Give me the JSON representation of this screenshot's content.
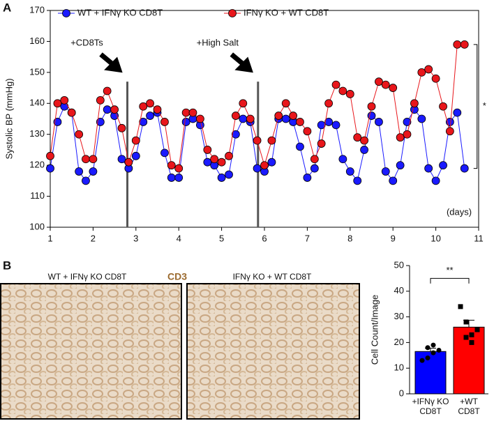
{
  "panels": [
    "A",
    "B"
  ],
  "chart_data": [
    {
      "type": "line",
      "y_label": "Systolic BP (mmHg)",
      "x_label": "(days)",
      "significance": "*",
      "annotations": [
        {
          "text": "+CD8Ts",
          "x": 2.8
        },
        {
          "text": "+High Salt",
          "x": 5.85
        }
      ],
      "xlim": [
        1,
        11
      ],
      "xticks": [
        1,
        2,
        3,
        4,
        5,
        6,
        7,
        8,
        9,
        10,
        11
      ],
      "ylim": [
        100,
        170
      ],
      "yticks": [
        100,
        110,
        120,
        130,
        140,
        150,
        160,
        170
      ],
      "x": [
        1,
        1.17,
        1.33,
        1.5,
        1.67,
        1.83,
        2,
        2.17,
        2.33,
        2.5,
        2.67,
        2.83,
        3,
        3.17,
        3.33,
        3.5,
        3.67,
        3.83,
        4,
        4.17,
        4.33,
        4.5,
        4.67,
        4.83,
        5,
        5.17,
        5.33,
        5.5,
        5.67,
        5.83,
        6,
        6.17,
        6.33,
        6.5,
        6.67,
        6.83,
        7,
        7.17,
        7.33,
        7.5,
        7.67,
        7.83,
        8,
        8.17,
        8.33,
        8.5,
        8.67,
        8.83,
        9,
        9.17,
        9.33,
        9.5,
        9.67,
        9.83,
        10,
        10.17,
        10.33,
        10.5,
        10.67
      ],
      "series": [
        {
          "name": "WT + IFNγ KO CD8T",
          "color": "#1a1aff",
          "values": [
            119,
            134,
            139,
            137,
            118,
            115,
            118,
            134,
            138,
            136,
            122,
            119,
            123,
            134,
            136,
            137,
            124,
            116,
            116,
            134,
            135,
            133,
            121,
            120,
            116,
            117,
            130,
            135,
            134,
            119,
            118,
            121,
            135,
            135,
            134,
            126,
            116,
            119,
            133,
            134,
            133,
            122,
            118,
            115,
            125,
            136,
            134,
            118,
            115,
            120,
            134,
            138,
            135,
            119,
            115,
            120,
            134,
            137,
            119
          ]
        },
        {
          "name": "IFNγ KO + WT CD8T",
          "color": "#e8161b",
          "values": [
            123,
            140,
            141,
            137,
            130,
            122,
            122,
            141,
            144,
            138,
            132,
            121,
            128,
            139,
            140,
            138,
            134,
            120,
            119,
            137,
            137,
            135,
            125,
            122,
            121,
            123,
            136,
            140,
            135,
            128,
            120,
            128,
            136,
            140,
            136,
            134,
            131,
            122,
            127,
            140,
            146,
            144,
            143,
            129,
            128,
            139,
            147,
            146,
            145,
            129,
            130,
            140,
            150,
            151,
            148,
            139,
            131,
            159,
            159
          ]
        }
      ]
    },
    {
      "type": "bar",
      "y_label": "Cell Count/Image",
      "significance": "**",
      "categories": [
        [
          "+IFNγ  KO",
          "CD8T"
        ],
        [
          "+WT",
          "CD8T"
        ]
      ],
      "values": [
        16.5,
        26
      ],
      "errors": [
        1.3,
        2.7
      ],
      "colors": [
        "#0000ff",
        "#ff0000"
      ],
      "points": [
        [
          13,
          14,
          16,
          18,
          19,
          17
        ],
        [
          34,
          28,
          23,
          22,
          20,
          25
        ]
      ],
      "ylim": [
        0,
        50
      ],
      "yticks": [
        0,
        10,
        20,
        30,
        40,
        50
      ]
    }
  ],
  "images": {
    "left_label": "WT + IFNγ KO CD8T",
    "stain": "CD3",
    "right_label": "IFNγ KO + WT CD8T"
  }
}
